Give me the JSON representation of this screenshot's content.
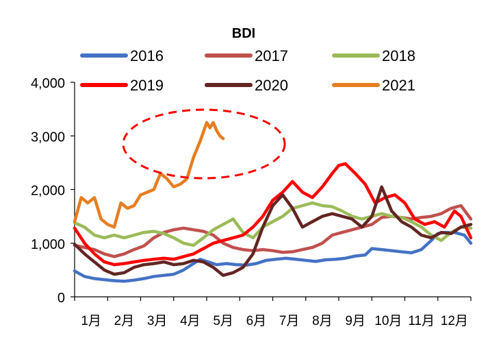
{
  "chart_data": {
    "type": "line",
    "title": "BDI",
    "xlabel": "",
    "ylabel": "",
    "ylim": [
      0,
      4000
    ],
    "yticks": [
      "0",
      "1,000",
      "2,000",
      "3,000",
      "4,000"
    ],
    "months": [
      "1月",
      "2月",
      "3月",
      "4月",
      "5月",
      "6月",
      "7月",
      "8月",
      "9月",
      "10月",
      "11月",
      "12月"
    ],
    "grid": false,
    "legend_position": "top",
    "annotation": "red dashed ellipse highlighting the 2021 peak in April–May",
    "x_unit": "months (1.0 = start of January, 13.0 = end of December)",
    "series": [
      {
        "name": "2016",
        "color": "#4472c4",
        "x": [
          1.0,
          1.3,
          1.6,
          1.9,
          2.2,
          2.5,
          2.8,
          3.1,
          3.4,
          3.7,
          4.0,
          4.3,
          4.6,
          4.8,
          5.0,
          5.3,
          5.6,
          5.9,
          6.2,
          6.5,
          6.8,
          7.1,
          7.4,
          7.7,
          8.0,
          8.3,
          8.6,
          8.9,
          9.2,
          9.5,
          9.8,
          10.0,
          10.3,
          10.6,
          10.9,
          11.2,
          11.5,
          11.8,
          12.0,
          12.2,
          12.5,
          12.8,
          13.0
        ],
        "values": [
          480,
          380,
          340,
          320,
          300,
          290,
          310,
          340,
          380,
          400,
          420,
          500,
          620,
          700,
          660,
          600,
          620,
          600,
          590,
          620,
          680,
          700,
          720,
          700,
          680,
          660,
          690,
          700,
          720,
          760,
          780,
          900,
          880,
          860,
          840,
          820,
          880,
          1050,
          1180,
          1200,
          1200,
          1150,
          1000
        ]
      },
      {
        "name": "2017",
        "color": "#c0504d",
        "x": [
          1.0,
          1.3,
          1.6,
          1.9,
          2.2,
          2.5,
          2.8,
          3.1,
          3.4,
          3.7,
          4.0,
          4.3,
          4.6,
          4.9,
          5.2,
          5.5,
          5.8,
          6.1,
          6.4,
          6.7,
          7.0,
          7.3,
          7.6,
          7.9,
          8.2,
          8.5,
          8.8,
          9.1,
          9.4,
          9.7,
          10.0,
          10.3,
          10.6,
          10.9,
          11.2,
          11.5,
          11.8,
          12.1,
          12.4,
          12.7,
          13.0
        ],
        "values": [
          960,
          920,
          880,
          800,
          750,
          800,
          880,
          950,
          1100,
          1200,
          1250,
          1280,
          1250,
          1220,
          1150,
          1000,
          920,
          880,
          860,
          880,
          860,
          830,
          840,
          880,
          920,
          1000,
          1150,
          1200,
          1250,
          1300,
          1350,
          1480,
          1500,
          1480,
          1450,
          1480,
          1500,
          1550,
          1650,
          1700,
          1450
        ]
      },
      {
        "name": "2018",
        "color": "#9bbb59",
        "x": [
          1.0,
          1.3,
          1.6,
          1.9,
          2.2,
          2.5,
          2.8,
          3.1,
          3.4,
          3.7,
          4.0,
          4.3,
          4.6,
          4.9,
          5.2,
          5.5,
          5.8,
          6.1,
          6.4,
          6.7,
          7.0,
          7.3,
          7.6,
          7.9,
          8.2,
          8.5,
          8.8,
          9.1,
          9.4,
          9.7,
          10.0,
          10.3,
          10.6,
          10.9,
          11.2,
          11.5,
          11.8,
          12.1,
          12.4,
          12.7,
          13.0
        ],
        "values": [
          1380,
          1300,
          1150,
          1100,
          1150,
          1100,
          1150,
          1200,
          1220,
          1180,
          1100,
          1000,
          960,
          1100,
          1250,
          1350,
          1450,
          1200,
          1100,
          1300,
          1400,
          1500,
          1650,
          1700,
          1750,
          1700,
          1680,
          1600,
          1500,
          1450,
          1500,
          1550,
          1500,
          1480,
          1400,
          1300,
          1150,
          1050,
          1200,
          1300,
          1280
        ]
      },
      {
        "name": "2019",
        "color": "#ff0000",
        "x": [
          1.0,
          1.3,
          1.6,
          1.9,
          2.2,
          2.5,
          2.8,
          3.1,
          3.4,
          3.7,
          4.0,
          4.3,
          4.6,
          4.9,
          5.2,
          5.5,
          5.8,
          6.1,
          6.4,
          6.7,
          7.0,
          7.3,
          7.6,
          7.9,
          8.2,
          8.5,
          8.8,
          9.0,
          9.2,
          9.5,
          9.8,
          10.1,
          10.4,
          10.7,
          11.0,
          11.3,
          11.6,
          11.9,
          12.2,
          12.5,
          12.7,
          13.0
        ],
        "values": [
          1280,
          1000,
          800,
          650,
          600,
          620,
          650,
          680,
          700,
          720,
          700,
          750,
          800,
          900,
          1000,
          1050,
          1100,
          1150,
          1300,
          1500,
          1800,
          1950,
          2150,
          1950,
          1850,
          2050,
          2300,
          2450,
          2480,
          2300,
          2100,
          1750,
          1850,
          1900,
          1750,
          1450,
          1350,
          1400,
          1300,
          1600,
          1500,
          1100
        ]
      },
      {
        "name": "2020",
        "color": "#632523",
        "x": [
          1.0,
          1.3,
          1.6,
          1.9,
          2.2,
          2.5,
          2.8,
          3.1,
          3.4,
          3.7,
          4.0,
          4.3,
          4.6,
          4.9,
          5.2,
          5.5,
          5.8,
          6.1,
          6.4,
          6.7,
          7.0,
          7.3,
          7.6,
          7.9,
          8.2,
          8.5,
          8.8,
          9.1,
          9.4,
          9.7,
          10.0,
          10.3,
          10.6,
          10.9,
          11.2,
          11.5,
          11.8,
          12.1,
          12.4,
          12.7,
          13.0
        ],
        "values": [
          980,
          800,
          650,
          500,
          420,
          450,
          550,
          600,
          620,
          650,
          600,
          620,
          680,
          650,
          550,
          400,
          450,
          550,
          800,
          1300,
          1700,
          1900,
          1650,
          1300,
          1400,
          1500,
          1550,
          1500,
          1450,
          1300,
          1500,
          2050,
          1600,
          1400,
          1300,
          1150,
          1100,
          1200,
          1180,
          1300,
          1350
        ]
      },
      {
        "name": "2021",
        "color": "#e67e22",
        "x": [
          1.0,
          1.2,
          1.4,
          1.6,
          1.8,
          2.0,
          2.2,
          2.4,
          2.6,
          2.8,
          3.0,
          3.2,
          3.4,
          3.6,
          3.8,
          4.0,
          4.2,
          4.4,
          4.6,
          4.8,
          5.0,
          5.1,
          5.2,
          5.3,
          5.4,
          5.5
        ],
        "values": [
          1400,
          1850,
          1750,
          1850,
          1450,
          1350,
          1300,
          1750,
          1650,
          1700,
          1900,
          1950,
          2000,
          2300,
          2200,
          2050,
          2100,
          2200,
          2600,
          2900,
          3250,
          3150,
          3250,
          3100,
          3000,
          2950
        ]
      }
    ]
  }
}
